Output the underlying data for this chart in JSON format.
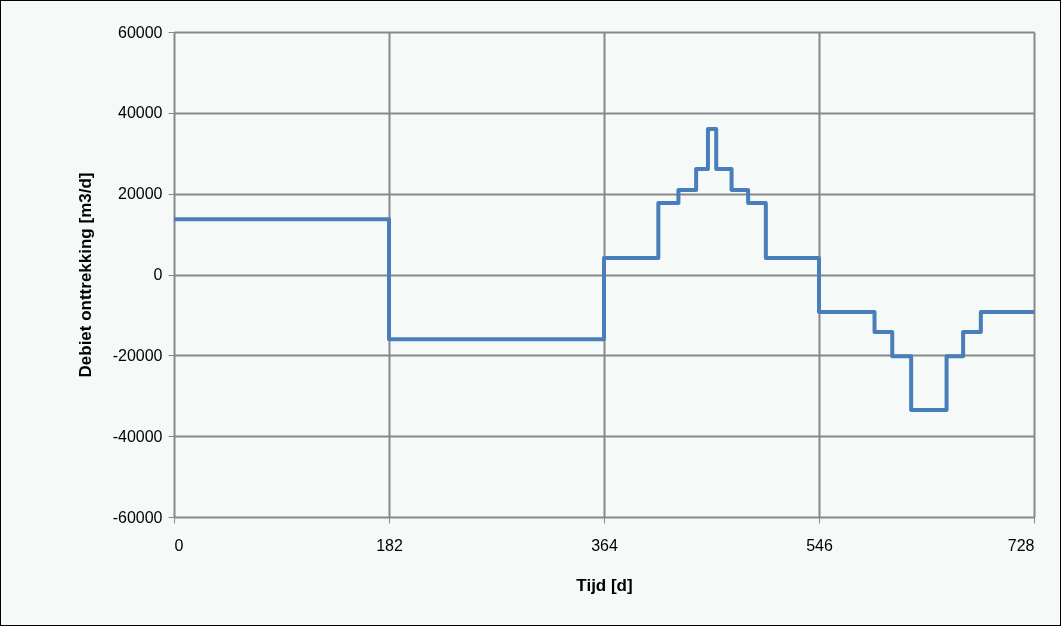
{
  "chart_data": {
    "type": "step",
    "xlabel": "Tijd [d]",
    "ylabel": "Debiet onttrekking [m3/d]",
    "x": [
      0,
      182,
      364,
      410,
      427,
      442,
      452,
      459,
      472,
      486,
      501,
      546,
      593,
      608,
      624,
      654,
      668,
      683,
      728
    ],
    "series": [
      {
        "color": "#4a7ebb",
        "values": [
          13700,
          -16000,
          4100,
          17700,
          20900,
          26100,
          36000,
          26100,
          20900,
          17700,
          4100,
          -9300,
          -14200,
          -20200,
          -33500,
          -20200,
          -14200,
          -9300,
          -9300
        ]
      }
    ],
    "xlim": [
      0,
      728
    ],
    "xticks": [
      0,
      182,
      364,
      546,
      728
    ],
    "ylim": [
      -60000,
      60000
    ],
    "yticks": [
      -60000,
      -40000,
      -20000,
      0,
      20000,
      40000,
      60000
    ],
    "grid": true,
    "marker": "none",
    "line_style": "solid"
  }
}
